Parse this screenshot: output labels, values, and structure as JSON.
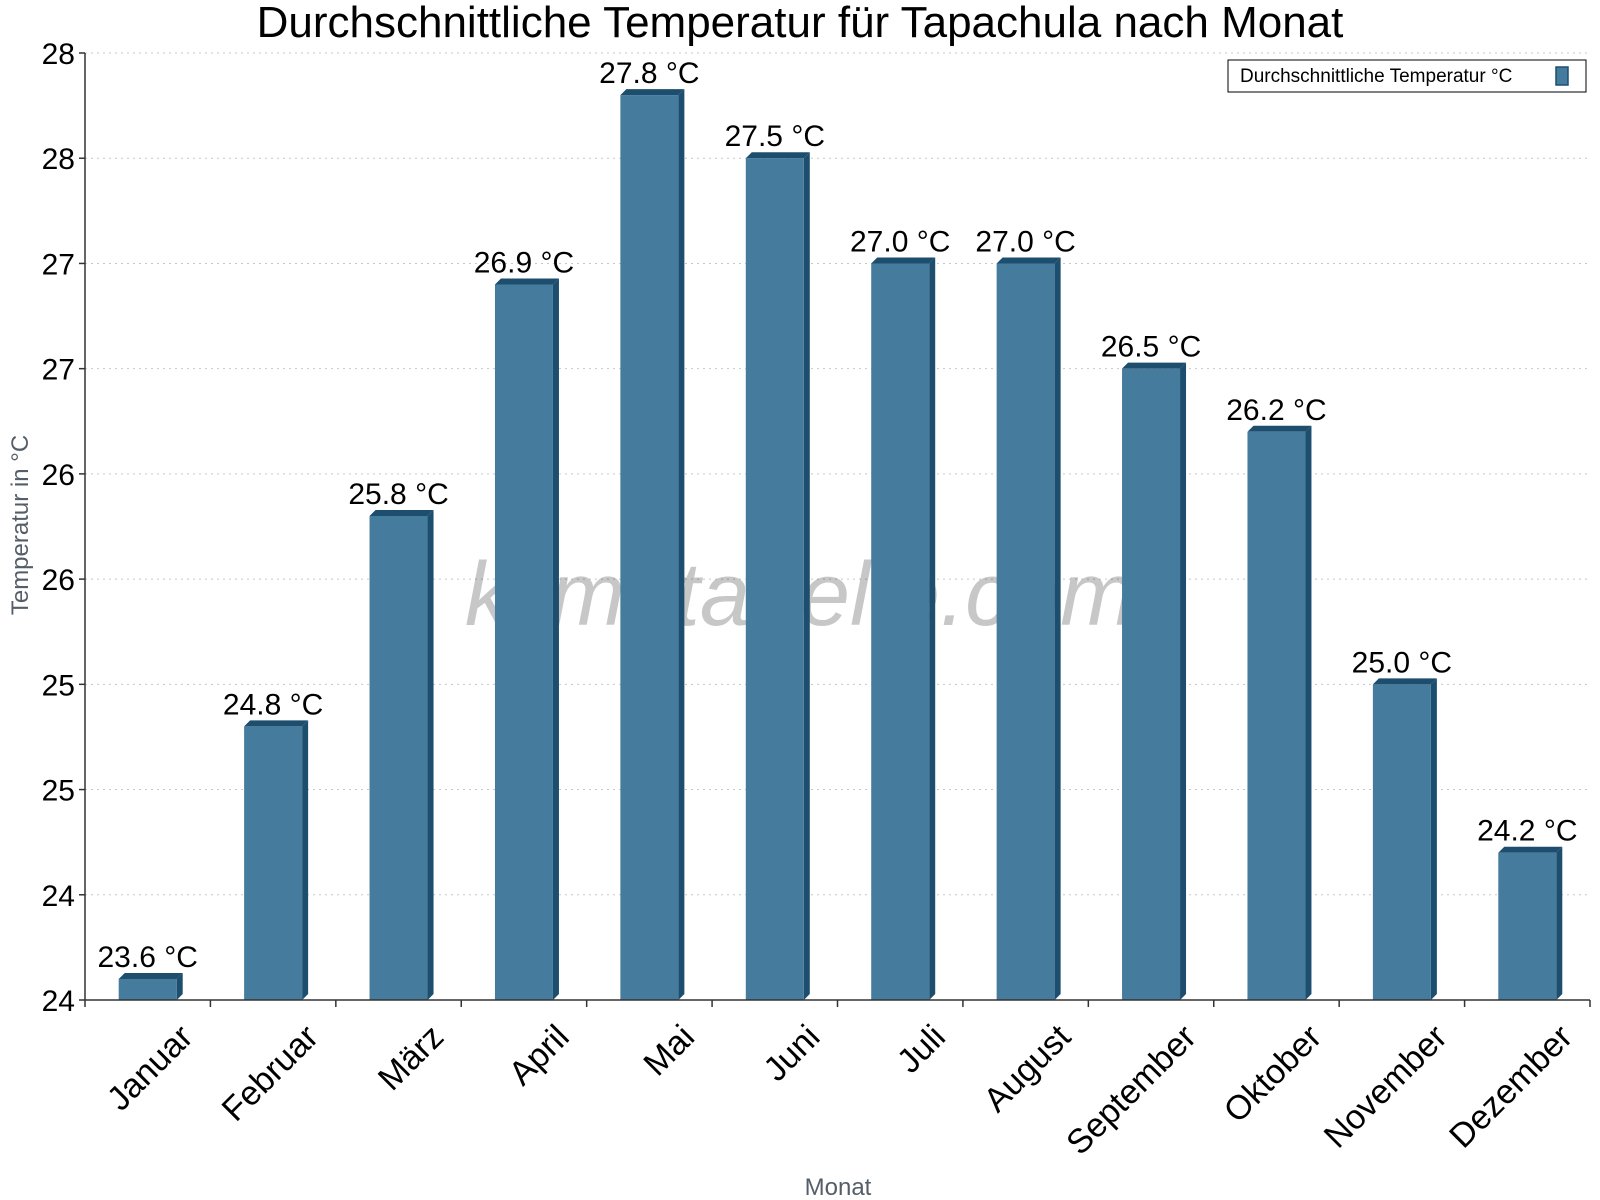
{
  "chart_data": {
    "type": "bar",
    "title": "Durchschnittliche Temperatur für Tapachula nach Monat",
    "xlabel": "Monat",
    "ylabel": "Temperatur in °C",
    "categories": [
      "Januar",
      "Februar",
      "März",
      "April",
      "Mai",
      "Juni",
      "Juli",
      "August",
      "September",
      "Oktober",
      "November",
      "Dezember"
    ],
    "series": [
      {
        "name": "Durchschnittliche Temperatur °C",
        "values": [
          23.6,
          24.8,
          25.8,
          26.9,
          27.8,
          27.5,
          27.0,
          27.0,
          26.5,
          26.2,
          25.0,
          24.2
        ],
        "labels": [
          "23.6 °C",
          "24.8 °C",
          "25.8 °C",
          "26.9 °C",
          "27.8 °C",
          "27.5 °C",
          "27.0 °C",
          "27.0 °C",
          "26.5 °C",
          "26.2 °C",
          "25.0 °C",
          "24.2 °C"
        ],
        "color": "#457b9d",
        "edge_color": "#1d4e6e"
      }
    ],
    "ylim": [
      23.5,
      28.0
    ],
    "yticks": [
      23.5,
      24.0,
      24.5,
      25.0,
      25.5,
      26.0,
      26.5,
      27.0,
      27.5,
      28.0
    ],
    "ytick_labels": [
      "24",
      "24",
      "25",
      "25",
      "26",
      "26",
      "27",
      "27",
      "28",
      "28"
    ],
    "grid": true,
    "legend_position": "top-right",
    "watermark": "klimatabelle.com"
  }
}
